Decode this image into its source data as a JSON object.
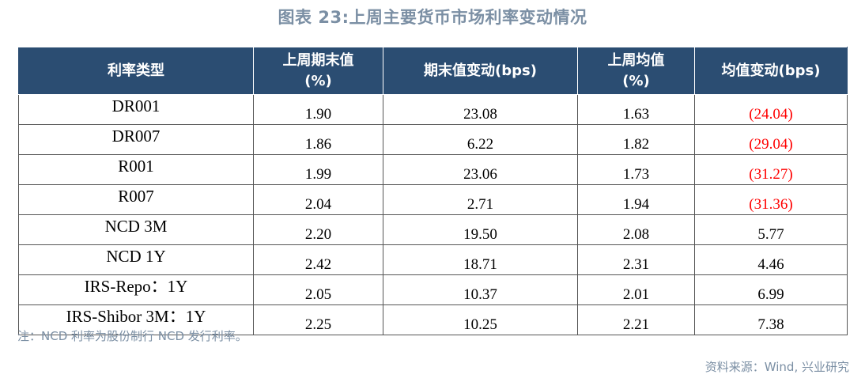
{
  "title": "图表 23:上周主要货币市场利率变动情况",
  "table": {
    "headers": [
      "利率类型",
      "上周期末值\n(%)",
      "期末值变动(bps)",
      "上周均值\n(%)",
      "均值变动(bps)"
    ],
    "rows": [
      {
        "name": "DR001",
        "end_value": "1.90",
        "end_change": "23.08",
        "avg_value": "1.63",
        "avg_change": "(24.04)",
        "avg_change_negative": true
      },
      {
        "name": "DR007",
        "end_value": "1.86",
        "end_change": "6.22",
        "avg_value": "1.82",
        "avg_change": "(29.04)",
        "avg_change_negative": true
      },
      {
        "name": "R001",
        "end_value": "1.99",
        "end_change": "23.06",
        "avg_value": "1.73",
        "avg_change": "(31.27)",
        "avg_change_negative": true
      },
      {
        "name": "R007",
        "end_value": "2.04",
        "end_change": "2.71",
        "avg_value": "1.94",
        "avg_change": "(31.36)",
        "avg_change_negative": true
      },
      {
        "name": "NCD 3M",
        "end_value": "2.20",
        "end_change": "19.50",
        "avg_value": "2.08",
        "avg_change": "5.77",
        "avg_change_negative": false
      },
      {
        "name": "NCD 1Y",
        "end_value": "2.42",
        "end_change": "18.71",
        "avg_value": "2.31",
        "avg_change": "4.46",
        "avg_change_negative": false
      },
      {
        "name": "IRS-Repo：1Y",
        "end_value": "2.05",
        "end_change": "10.37",
        "avg_value": "2.01",
        "avg_change": "6.99",
        "avg_change_negative": false
      },
      {
        "name": "IRS-Shibor 3M：1Y",
        "end_value": "2.25",
        "end_change": "10.25",
        "avg_value": "2.21",
        "avg_change": "7.38",
        "avg_change_negative": false
      }
    ]
  },
  "note": "注：NCD 利率为股份制行 NCD 发行利率。",
  "source": "资料来源：Wind, 兴业研究",
  "colors": {
    "header_bg": "#2b4d72",
    "title_text": "#7b8fa4",
    "negative_text": "#ff0000"
  }
}
